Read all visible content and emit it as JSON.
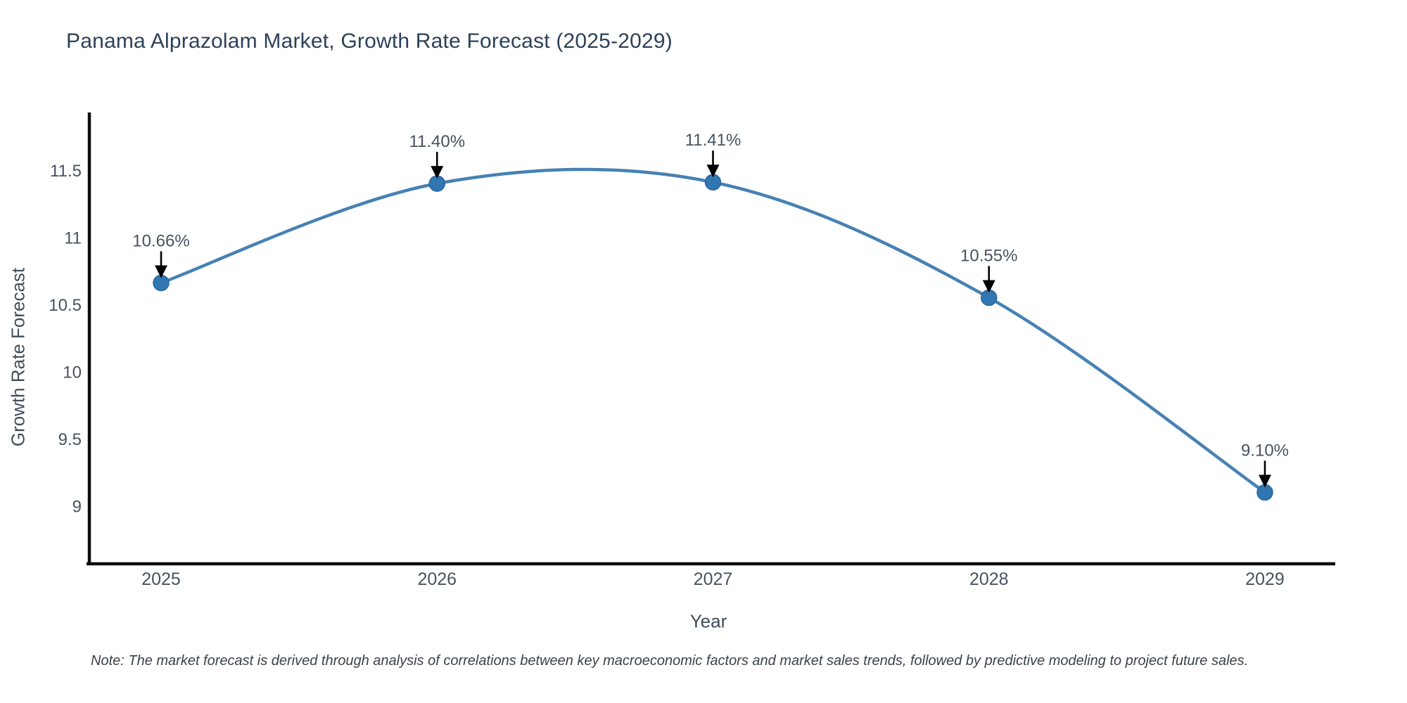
{
  "title": "Panama Alprazolam Market, Growth Rate Forecast (2025-2029)",
  "note": "Note: The market forecast is derived through analysis of correlations between key macroeconomic factors and market sales trends, followed by predictive modeling to project future sales.",
  "chart_data": {
    "type": "line",
    "title": "Panama Alprazolam Market, Growth Rate Forecast (2025-2029)",
    "xlabel": "Year",
    "ylabel": "Growth Rate Forecast",
    "categories": [
      "2025",
      "2026",
      "2027",
      "2028",
      "2029"
    ],
    "values": [
      10.66,
      11.4,
      11.41,
      10.55,
      9.1
    ],
    "point_labels": [
      "10.66%",
      "11.40%",
      "11.41%",
      "10.55%",
      "9.10%"
    ],
    "yticks": [
      11.5,
      11,
      10.5,
      10,
      9.5,
      9
    ],
    "ytick_labels": [
      "11.5",
      "11",
      "10.5",
      "10",
      "9.5",
      "9"
    ],
    "ylim": [
      8.57,
      11.93
    ],
    "curve": "spline",
    "grid": false,
    "legend": "none",
    "colors": {
      "line": "#4681b4",
      "marker_fill": "#3077b2",
      "marker_edge": "#2b669b",
      "axis_spine": "#0d0d0d",
      "tick_text": "#49525f",
      "annotation_text": "#49525f",
      "annotation_arrow": "#000000",
      "title_text": "#2e4157",
      "axis_label_text": "#414c59",
      "note_text": "#3b424a"
    }
  }
}
